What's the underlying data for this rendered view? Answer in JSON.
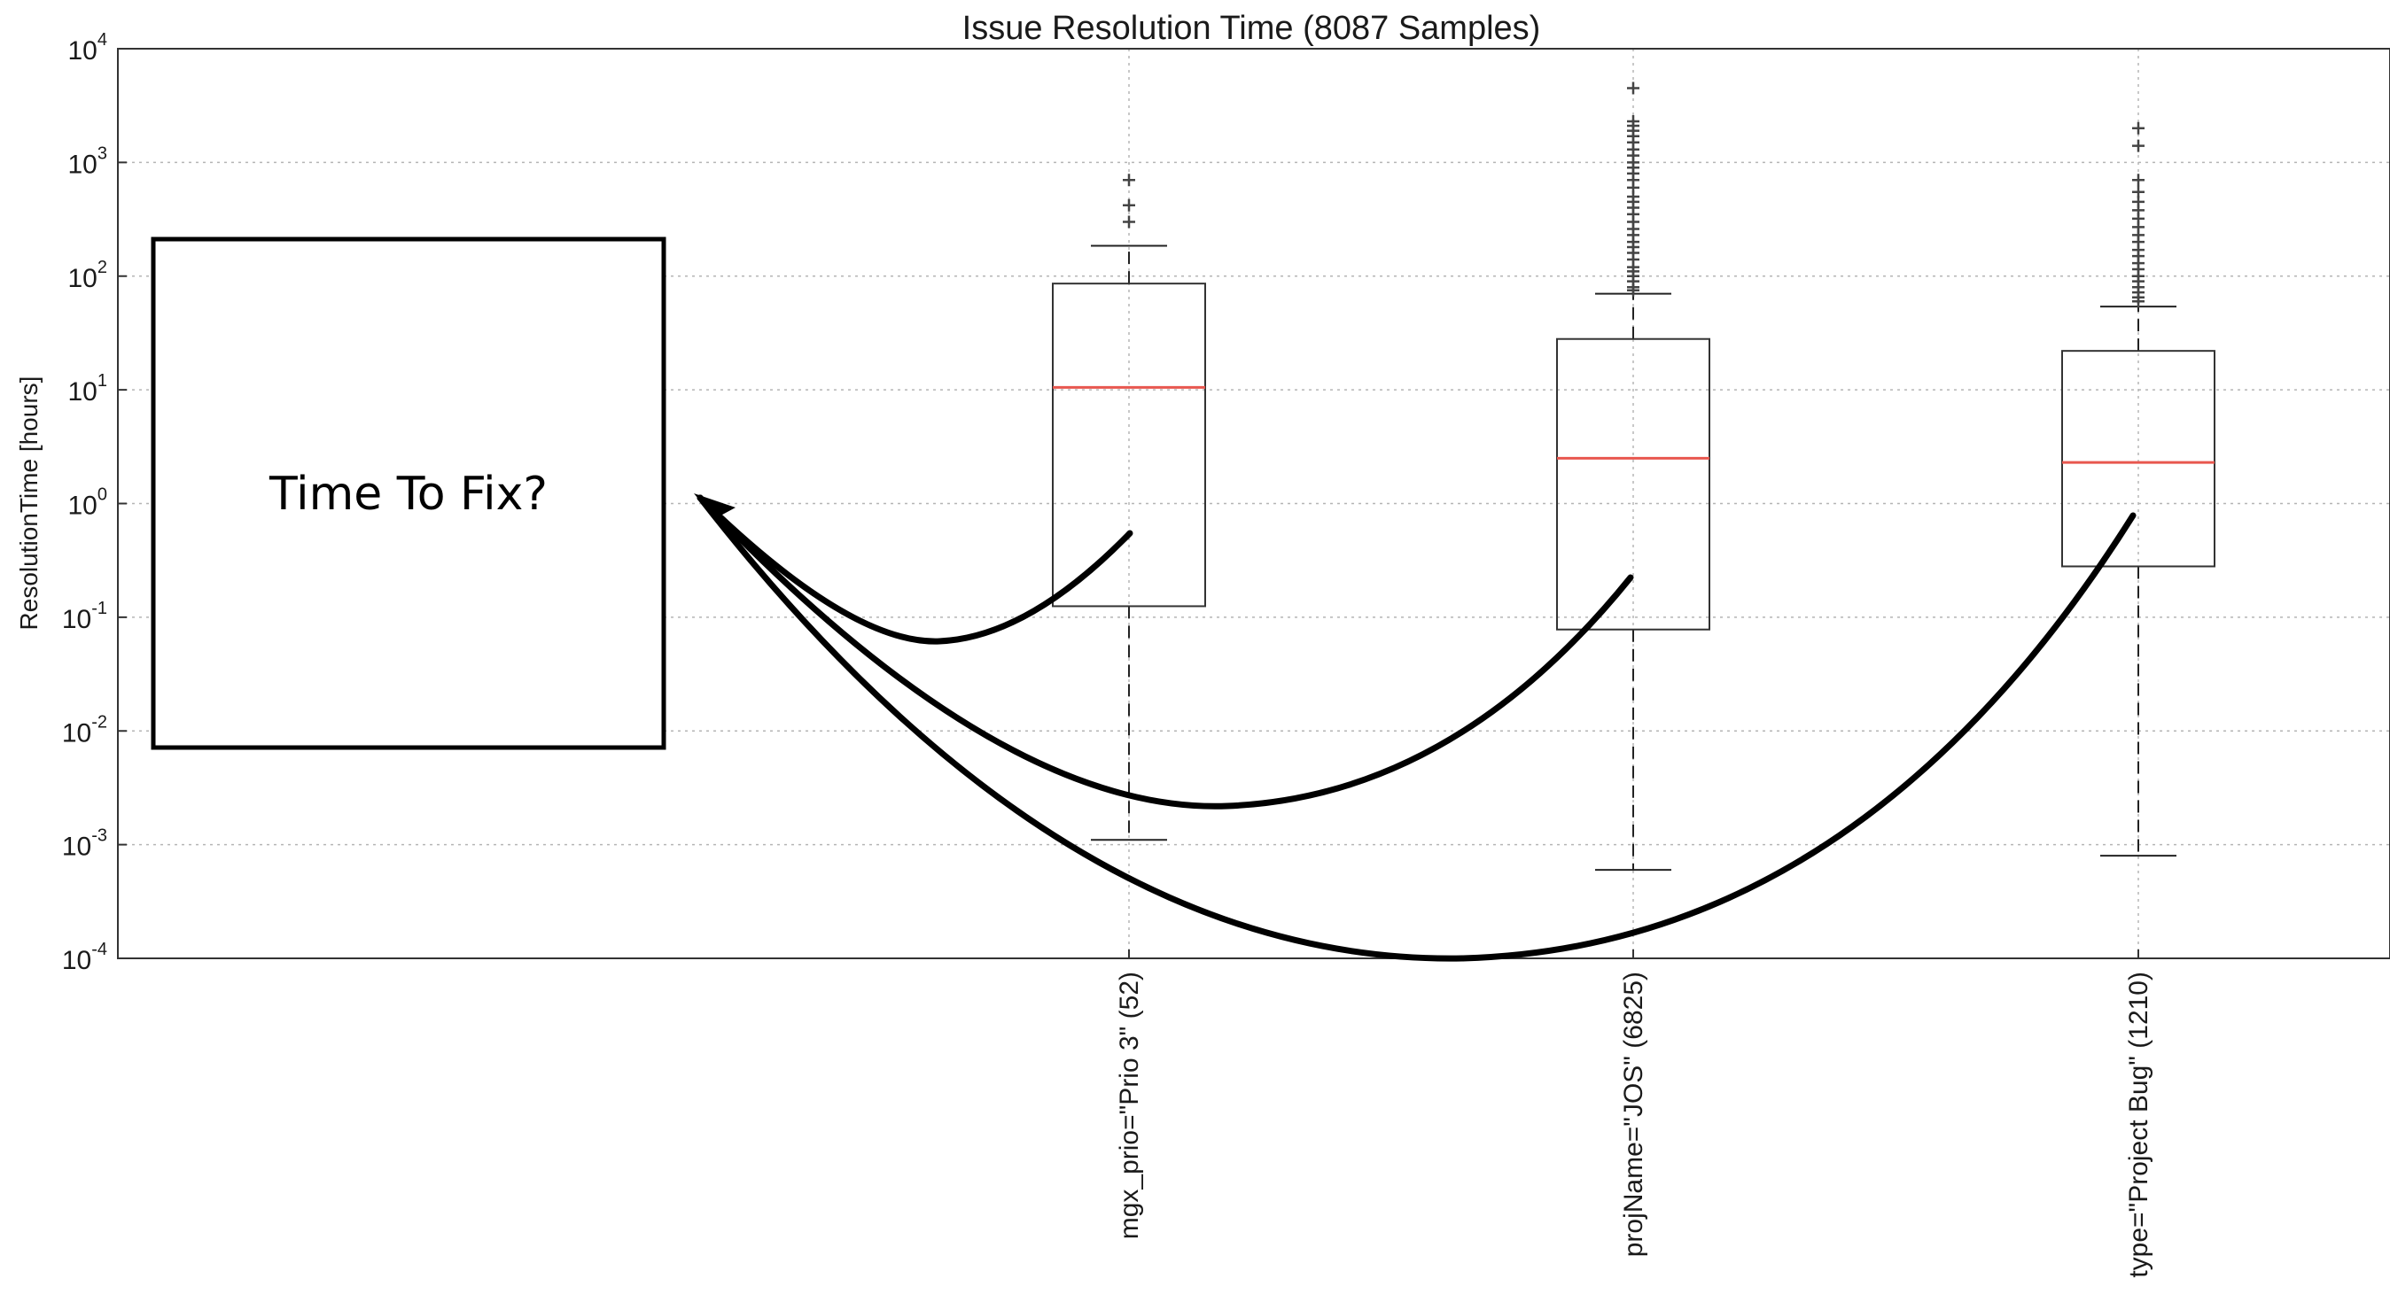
{
  "chart_data": {
    "type": "box",
    "title": "Issue Resolution Time (8087 Samples)",
    "ylabel": "ResolutionTime [hours]",
    "yscale": "log",
    "ylim": [
      0.0001,
      10000
    ],
    "ytick_base": "10",
    "ytick_exponents": [
      "4",
      "3",
      "2",
      "1",
      "0",
      "-1",
      "-2",
      "-3",
      "-4"
    ],
    "grid": true,
    "categories": [
      "mgx_prio=\"Prio 3\" (52)",
      "projName=\"JOS\" (6825)",
      "type=\"Project Bug\" (1210)"
    ],
    "series": [
      {
        "whisker_low": 0.0011,
        "q1": 0.125,
        "median": 10.5,
        "q3": 86,
        "whisker_high": 185,
        "outliers": [
          300,
          420,
          700
        ]
      },
      {
        "whisker_low": 0.0006,
        "q1": 0.078,
        "median": 2.5,
        "q3": 28,
        "whisker_high": 70,
        "outliers": [
          75,
          80,
          90,
          100,
          110,
          120,
          140,
          160,
          180,
          200,
          230,
          260,
          300,
          350,
          400,
          450,
          500,
          600,
          700,
          800,
          900,
          1000,
          1150,
          1300,
          1500,
          1700,
          1900,
          2100,
          2300,
          4500
        ]
      },
      {
        "whisker_low": 0.0008,
        "q1": 0.28,
        "median": 2.3,
        "q3": 22,
        "whisker_high": 54,
        "outliers": [
          60,
          65,
          72,
          80,
          90,
          100,
          115,
          130,
          150,
          170,
          200,
          230,
          270,
          320,
          380,
          450,
          550,
          700,
          1400,
          2000
        ]
      }
    ],
    "colors": {
      "box": "#333333",
      "median": "#e8574f",
      "grid": "#b5b5b5",
      "arrow": "#000000"
    }
  },
  "callout": {
    "label": "Time To Fix?"
  }
}
